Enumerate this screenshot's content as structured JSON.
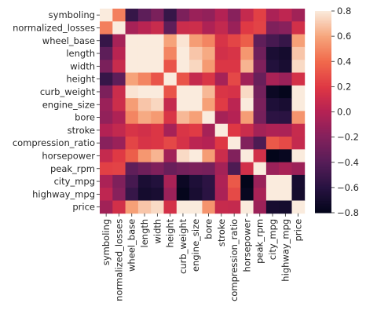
{
  "chart_data": {
    "type": "heatmap",
    "title": "",
    "xlabel": "",
    "ylabel": "",
    "variables": [
      "symboling",
      "normalized_losses",
      "wheel_base",
      "length",
      "width",
      "height",
      "curb_weight",
      "engine_size",
      "bore",
      "stroke",
      "compression_ratio",
      "horsepower",
      "peak_rpm",
      "city_mpg",
      "highway_mpg",
      "price"
    ],
    "matrix": [
      [
        1.0,
        0.47,
        -0.54,
        -0.37,
        -0.24,
        -0.54,
        -0.23,
        -0.11,
        -0.14,
        -0.01,
        -0.18,
        0.07,
        0.23,
        -0.04,
        0.04,
        -0.08
      ],
      [
        0.47,
        1.0,
        -0.06,
        0.02,
        0.09,
        -0.37,
        0.1,
        0.11,
        -0.03,
        0.06,
        -0.11,
        0.2,
        0.24,
        -0.22,
        -0.18,
        0.13
      ],
      [
        -0.54,
        -0.06,
        1.0,
        0.88,
        0.82,
        0.59,
        0.78,
        0.57,
        0.49,
        0.16,
        0.25,
        0.35,
        -0.36,
        -0.47,
        -0.54,
        0.58
      ],
      [
        -0.37,
        0.02,
        0.88,
        1.0,
        0.86,
        0.49,
        0.88,
        0.69,
        0.61,
        0.13,
        0.16,
        0.55,
        -0.29,
        -0.67,
        -0.7,
        0.69
      ],
      [
        -0.24,
        0.09,
        0.82,
        0.86,
        1.0,
        0.31,
        0.87,
        0.74,
        0.56,
        0.18,
        0.18,
        0.64,
        -0.22,
        -0.63,
        -0.68,
        0.75
      ],
      [
        -0.54,
        -0.37,
        0.59,
        0.49,
        0.31,
        1.0,
        0.31,
        0.07,
        0.17,
        -0.06,
        0.26,
        -0.08,
        -0.32,
        -0.05,
        -0.11,
        0.14
      ],
      [
        -0.23,
        0.1,
        0.78,
        0.88,
        0.87,
        0.31,
        1.0,
        0.85,
        0.65,
        0.17,
        0.15,
        0.75,
        -0.27,
        -0.75,
        -0.79,
        0.83
      ],
      [
        -0.11,
        0.11,
        0.57,
        0.69,
        0.74,
        0.07,
        0.85,
        1.0,
        0.58,
        0.21,
        0.03,
        0.81,
        -0.24,
        -0.65,
        -0.68,
        0.87
      ],
      [
        -0.14,
        -0.03,
        0.49,
        0.61,
        0.56,
        0.17,
        0.65,
        0.58,
        1.0,
        -0.06,
        0.0,
        0.57,
        -0.26,
        -0.58,
        -0.59,
        0.54
      ],
      [
        -0.01,
        0.06,
        0.16,
        0.13,
        0.18,
        -0.06,
        0.17,
        0.21,
        -0.06,
        1.0,
        0.19,
        0.1,
        -0.07,
        -0.03,
        -0.04,
        0.08
      ],
      [
        -0.18,
        -0.11,
        0.25,
        0.16,
        0.18,
        0.26,
        0.15,
        0.03,
        0.0,
        0.19,
        1.0,
        -0.21,
        -0.44,
        0.33,
        0.27,
        0.07
      ],
      [
        0.07,
        0.2,
        0.35,
        0.55,
        0.64,
        -0.08,
        0.75,
        0.81,
        0.57,
        0.1,
        -0.21,
        1.0,
        0.13,
        -0.8,
        -0.77,
        0.81
      ],
      [
        0.23,
        0.24,
        -0.36,
        -0.29,
        -0.22,
        -0.32,
        -0.27,
        -0.24,
        -0.26,
        -0.07,
        -0.44,
        0.13,
        1.0,
        -0.11,
        -0.05,
        -0.1
      ],
      [
        -0.04,
        -0.22,
        -0.47,
        -0.67,
        -0.63,
        -0.05,
        -0.75,
        -0.65,
        -0.58,
        -0.03,
        0.33,
        -0.8,
        -0.11,
        1.0,
        0.97,
        -0.69
      ],
      [
        0.04,
        -0.18,
        -0.54,
        -0.7,
        -0.68,
        -0.11,
        -0.79,
        -0.68,
        -0.59,
        -0.04,
        0.27,
        -0.77,
        -0.05,
        0.97,
        1.0,
        -0.7
      ],
      [
        -0.08,
        0.13,
        0.58,
        0.69,
        0.75,
        0.14,
        0.83,
        0.87,
        0.54,
        0.08,
        0.07,
        0.81,
        -0.1,
        -0.69,
        -0.7,
        1.0
      ]
    ],
    "colorbar": {
      "vmin": -0.8,
      "vmax": 0.8,
      "ticks": [
        0.8,
        0.6,
        0.4,
        0.2,
        0.0,
        -0.2,
        -0.4,
        -0.6,
        -0.8
      ],
      "tick_labels": [
        "0.8",
        "0.6",
        "0.4",
        "0.2",
        "0.0",
        "−0.2",
        "−0.4",
        "−0.6",
        "−0.8"
      ]
    },
    "colormap": "rocket",
    "grid": false,
    "legend": "colorbar-right"
  }
}
